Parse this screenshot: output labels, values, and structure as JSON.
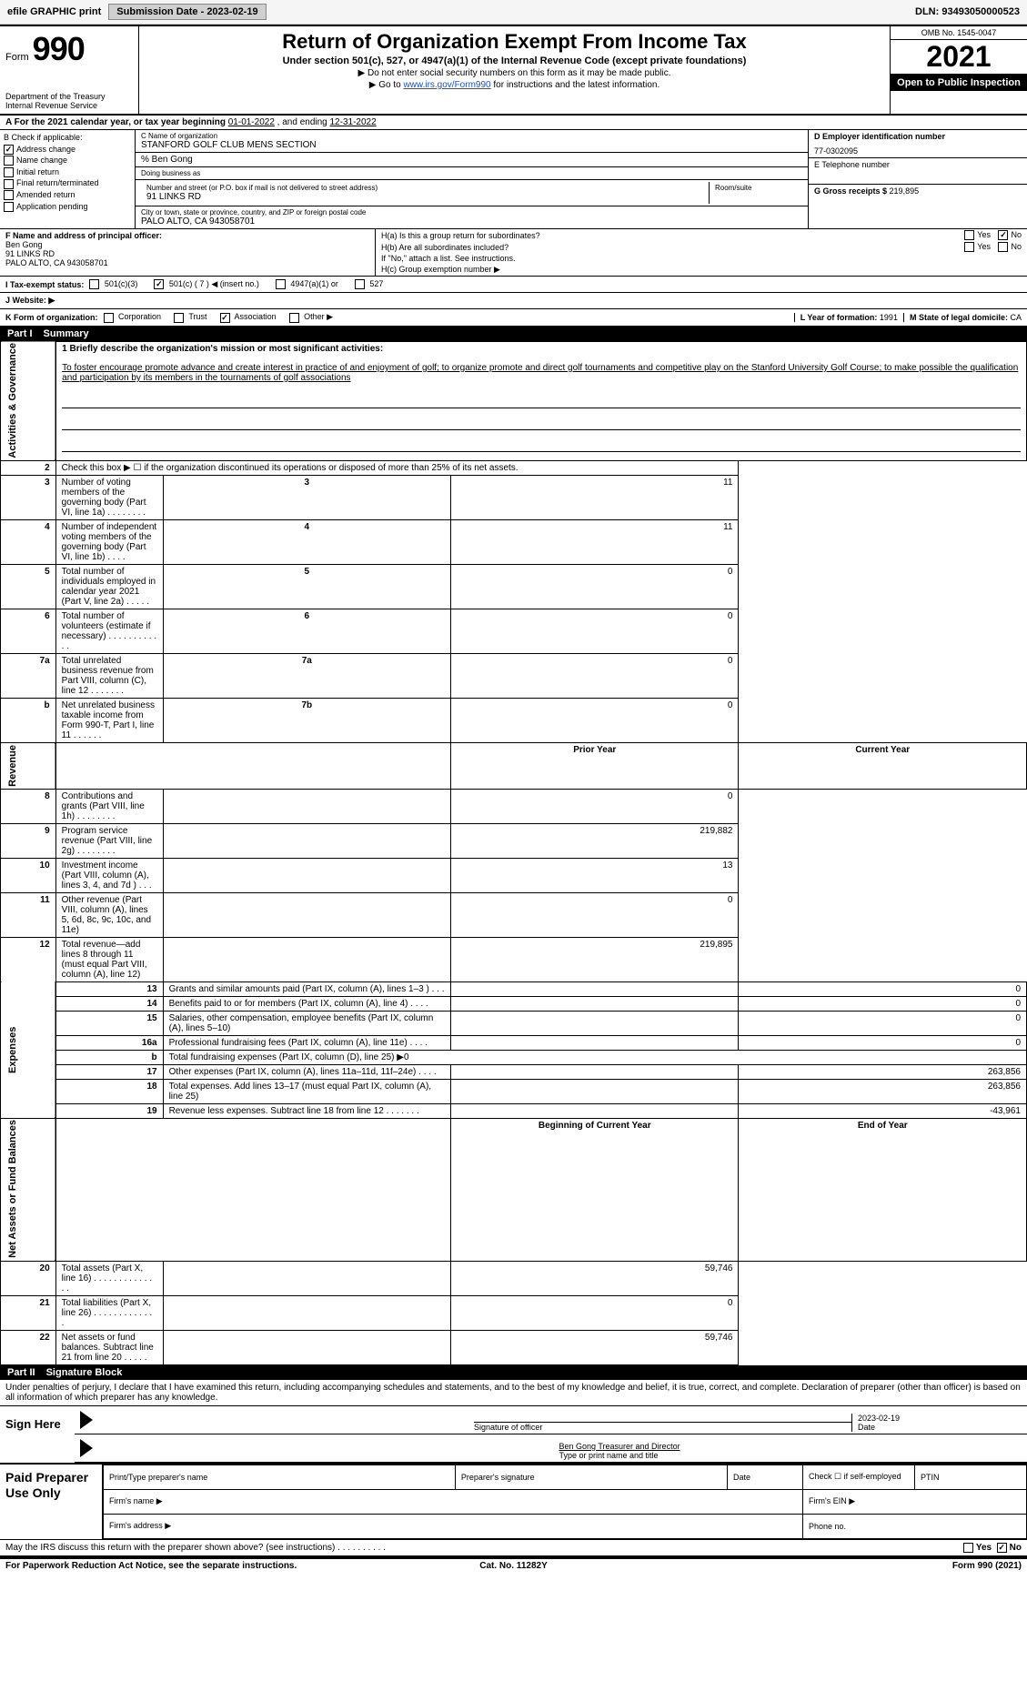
{
  "toolbar": {
    "efile_label": "efile GRAPHIC print",
    "submission_label": "Submission Date - 2023-02-19",
    "dln_label": "DLN: 93493050000523"
  },
  "header": {
    "form_word": "Form",
    "form_no": "990",
    "title": "Return of Organization Exempt From Income Tax",
    "subtitle": "Under section 501(c), 527, or 4947(a)(1) of the Internal Revenue Code (except private foundations)",
    "nossn": "▶ Do not enter social security numbers on this form as it may be made public.",
    "goto_prefix": "▶ Go to ",
    "goto_link": "www.irs.gov/Form990",
    "goto_suffix": " for instructions and the latest information.",
    "dept": "Department of the Treasury",
    "irs": "Internal Revenue Service",
    "omb": "OMB No. 1545-0047",
    "year": "2021",
    "open": "Open to Public Inspection"
  },
  "A": {
    "text_prefix": "A For the 2021 calendar year, or tax year beginning ",
    "begin": "01-01-2022",
    "middle": " , and ending ",
    "end": "12-31-2022"
  },
  "B": {
    "label": "B Check if applicable:",
    "items": [
      {
        "label": "Address change",
        "checked": true
      },
      {
        "label": "Name change",
        "checked": false
      },
      {
        "label": "Initial return",
        "checked": false
      },
      {
        "label": "Final return/terminated",
        "checked": false
      },
      {
        "label": "Amended return",
        "checked": false
      },
      {
        "label": "Application pending",
        "checked": false
      }
    ]
  },
  "C": {
    "name_lbl": "C Name of organization",
    "name": "STANFORD GOLF CLUB MENS SECTION",
    "careof_lbl": "% Ben Gong",
    "dba_lbl": "Doing business as",
    "dba": "",
    "street_lbl": "Number and street (or P.O. box if mail is not delivered to street address)",
    "room_lbl": "Room/suite",
    "street": "91 LINKS RD",
    "city_lbl": "City or town, state or province, country, and ZIP or foreign postal code",
    "city": "PALO ALTO, CA  943058701"
  },
  "D": {
    "ein_lbl": "D Employer identification number",
    "ein": "77-0302095",
    "tele_lbl": "E Telephone number",
    "tele": "",
    "gross_lbl": "G Gross receipts $ ",
    "gross": "219,895"
  },
  "F": {
    "lbl": "F Name and address of principal officer:",
    "name": "Ben Gong",
    "street": "91 LINKS RD",
    "city": "PALO ALTO, CA  943058701"
  },
  "H": {
    "a_lbl": "H(a) Is this a group return for subordinates?",
    "a_yes": "Yes",
    "a_no": "No",
    "a_checked": "No",
    "b_lbl": "H(b) Are all subordinates included?",
    "b_yes": "Yes",
    "b_no": "No",
    "b_note": "If \"No,\" attach a list. See instructions.",
    "c_lbl": "H(c) Group exemption number ▶"
  },
  "I": {
    "lbl": "I Tax-exempt status:",
    "opts": [
      "501(c)(3)",
      "501(c) ( 7 ) ◀ (insert no.)",
      "4947(a)(1) or",
      "527"
    ],
    "checked_index": 1
  },
  "J": {
    "lbl": "J  Website: ▶"
  },
  "K": {
    "lbl": "K Form of organization:",
    "opts": [
      "Corporation",
      "Trust",
      "Association",
      "Other ▶"
    ],
    "checked_index": 2
  },
  "L": {
    "lbl": "L Year of formation: ",
    "val": "1991"
  },
  "M": {
    "lbl": "M State of legal domicile: ",
    "val": "CA"
  },
  "partI": {
    "tag": "Part I",
    "title": "Summary",
    "line1_lbl": "1 Briefly describe the organization's mission or most significant activities:",
    "mission": "To foster encourage promote advance and create interest in practice of and enjoyment of golf; to organize promote and direct golf tournaments and competitive play on the Stanford University Golf Course; to make possible the qualification and participation by its members in the tournaments of golf associations"
  },
  "sect_labels": {
    "gov": "Activities & Governance",
    "rev": "Revenue",
    "exp": "Expenses",
    "net": "Net Assets or Fund Balances"
  },
  "gov_lines": [
    {
      "n": "2",
      "text": "Check this box ▶ ☐ if the organization discontinued its operations or disposed of more than 25% of its net assets.",
      "col": "",
      "val": ""
    },
    {
      "n": "3",
      "text": "Number of voting members of the governing body (Part VI, line 1a)  .    .    .    .    .    .    .    .",
      "col": "3",
      "val": "11"
    },
    {
      "n": "4",
      "text": "Number of independent voting members of the governing body (Part VI, line 1b)  .    .    .    .",
      "col": "4",
      "val": "11"
    },
    {
      "n": "5",
      "text": "Total number of individuals employed in calendar year 2021 (Part V, line 2a)  .    .    .    .    .",
      "col": "5",
      "val": "0"
    },
    {
      "n": "6",
      "text": "Total number of volunteers (estimate if necessary)  .    .    .    .    .    .    .    .    .    .    .    .",
      "col": "6",
      "val": "0"
    },
    {
      "n": "7a",
      "text": "Total unrelated business revenue from Part VIII, column (C), line 12  .    .    .    .    .    .    .",
      "col": "7a",
      "val": "0"
    },
    {
      "n": "b",
      "text": "Net unrelated business taxable income from Form 990-T, Part I, line 11  .    .    .    .    .    .",
      "col": "7b",
      "val": "0"
    }
  ],
  "two_col_hdr": {
    "prior": "Prior Year",
    "current": "Current Year"
  },
  "rev_lines": [
    {
      "n": "8",
      "text": "Contributions and grants (Part VIII, line 1h)  .    .    .    .    .    .    .    .",
      "prior": "",
      "current": "0"
    },
    {
      "n": "9",
      "text": "Program service revenue (Part VIII, line 2g)  .    .    .    .    .    .    .    .",
      "prior": "",
      "current": "219,882"
    },
    {
      "n": "10",
      "text": "Investment income (Part VIII, column (A), lines 3, 4, and 7d )  .    .    .",
      "prior": "",
      "current": "13"
    },
    {
      "n": "11",
      "text": "Other revenue (Part VIII, column (A), lines 5, 6d, 8c, 9c, 10c, and 11e)",
      "prior": "",
      "current": "0"
    },
    {
      "n": "12",
      "text": "Total revenue—add lines 8 through 11 (must equal Part VIII, column (A), line 12)",
      "prior": "",
      "current": "219,895"
    }
  ],
  "exp_lines": [
    {
      "n": "13",
      "text": "Grants and similar amounts paid (Part IX, column (A), lines 1–3 )  .    .    .",
      "prior": "",
      "current": "0"
    },
    {
      "n": "14",
      "text": "Benefits paid to or for members (Part IX, column (A), line 4)  .    .    .    .",
      "prior": "",
      "current": "0"
    },
    {
      "n": "15",
      "text": "Salaries, other compensation, employee benefits (Part IX, column (A), lines 5–10)",
      "prior": "",
      "current": "0"
    },
    {
      "n": "16a",
      "text": "Professional fundraising fees (Part IX, column (A), line 11e)  .    .    .    .",
      "prior": "",
      "current": "0"
    },
    {
      "n": "b",
      "text": "Total fundraising expenses (Part IX, column (D), line 25) ▶0",
      "prior": "—",
      "current": "—"
    },
    {
      "n": "17",
      "text": "Other expenses (Part IX, column (A), lines 11a–11d, 11f–24e)  .    .    .    .",
      "prior": "",
      "current": "263,856"
    },
    {
      "n": "18",
      "text": "Total expenses. Add lines 13–17 (must equal Part IX, column (A), line 25)",
      "prior": "",
      "current": "263,856"
    },
    {
      "n": "19",
      "text": "Revenue less expenses. Subtract line 18 from line 12  .    .    .    .    .    .    .",
      "prior": "",
      "current": "-43,961"
    }
  ],
  "net_hdr": {
    "begin": "Beginning of Current Year",
    "end": "End of Year"
  },
  "net_lines": [
    {
      "n": "20",
      "text": "Total assets (Part X, line 16)  .    .    .    .    .    .    .    .    .    .    .    .    .    .",
      "prior": "",
      "current": "59,746"
    },
    {
      "n": "21",
      "text": "Total liabilities (Part X, line 26)  .    .    .    .    .    .    .    .    .    .    .    .    .",
      "prior": "",
      "current": "0"
    },
    {
      "n": "22",
      "text": "Net assets or fund balances. Subtract line 21 from line 20  .    .    .    .    .",
      "prior": "",
      "current": "59,746"
    }
  ],
  "partII": {
    "tag": "Part II",
    "title": "Signature Block",
    "penalty": "Under penalties of perjury, I declare that I have examined this return, including accompanying schedules and statements, and to the best of my knowledge and belief, it is true, correct, and complete. Declaration of preparer (other than officer) is based on all information of which preparer has any knowledge."
  },
  "sign": {
    "here": "Sign Here",
    "sig_lbl": "Signature of officer",
    "date_lbl": "Date",
    "date": "2023-02-19",
    "name": "Ben Gong Treasurer and Director",
    "name_lbl": "Type or print name and title"
  },
  "prep": {
    "left": "Paid Preparer Use Only",
    "h1": "Print/Type preparer's name",
    "h2": "Preparer's signature",
    "h3": "Date",
    "h4": "Check ☐ if self-employed",
    "h5": "PTIN",
    "firm_name": "Firm's name ▶",
    "firm_ein": "Firm's EIN ▶",
    "firm_addr": "Firm's address ▶",
    "phone": "Phone no."
  },
  "may_discuss": {
    "text": "May the IRS discuss this return with the preparer shown above? (see instructions)  .    .    .    .    .    .    .    .    .    .",
    "yes": "Yes",
    "no": "No",
    "checked": "No"
  },
  "footer": {
    "left": "For Paperwork Reduction Act Notice, see the separate instructions.",
    "center": "Cat. No. 11282Y",
    "right": "Form 990 (2021)"
  }
}
